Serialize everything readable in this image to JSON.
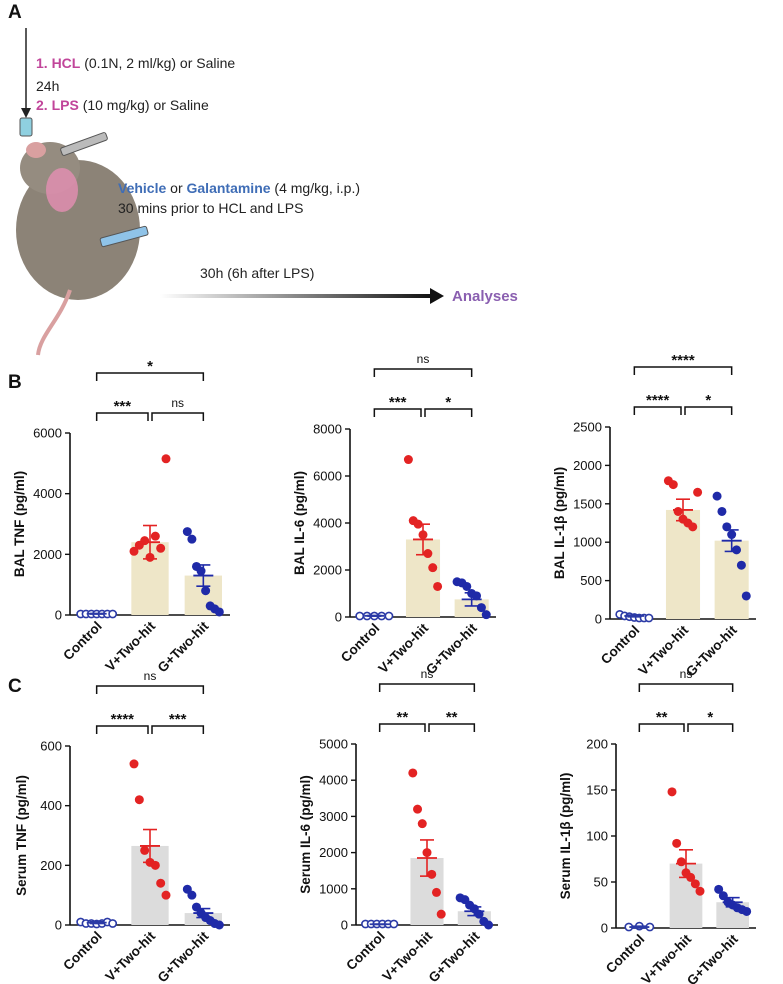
{
  "panel_labels": {
    "a": "A",
    "b": "B",
    "c": "C"
  },
  "schematic": {
    "step1_label": "1. HCL",
    "step1_detail": "(0.1N, 2 ml/kg) or Saline",
    "interval": "24h",
    "step2_label": "2. LPS",
    "step2_detail": "(10 mg/kg) or Saline",
    "vehicle": "Vehicle",
    "or_word": "or",
    "drug": "Galantamine",
    "drug_detail": "(4 mg/kg, i.p.)",
    "timing": "30 mins prior to HCL and LPS",
    "duration": "30h (6h after LPS)",
    "outcome": "Analyses"
  },
  "colors": {
    "control": "#2b3aa6",
    "vehicle": "#e32323",
    "galantamine": "#1f2aa8",
    "bar_yellow": "#eee6c8",
    "bar_gray": "#dcdcdc"
  },
  "chart_data": [
    {
      "type": "bar",
      "id": "bal-tnf",
      "ylabel": "BAL TNF (pg/ml)",
      "ylim": [
        0,
        6000
      ],
      "ticks": [
        0,
        2000,
        4000,
        6000
      ],
      "categories": [
        "Control",
        "V+Two-hit",
        "G+Two-hit"
      ],
      "means": [
        40,
        2400,
        1300
      ],
      "errors": [
        10,
        550,
        350
      ],
      "points": [
        [
          0,
          0,
          0,
          0,
          0,
          0,
          0
        ],
        [
          2100,
          2300,
          2450,
          1900,
          2600,
          2200,
          5150
        ],
        [
          2750,
          2500,
          1600,
          1450,
          800,
          300,
          200,
          100
        ]
      ],
      "sig": [
        {
          "pair": [
            0,
            1
          ],
          "label": "***",
          "level": 0
        },
        {
          "pair": [
            1,
            2
          ],
          "label": "ns",
          "level": 0
        },
        {
          "pair": [
            0,
            2
          ],
          "label": "*",
          "level": 1
        }
      ]
    },
    {
      "type": "bar",
      "id": "bal-il6",
      "ylabel": "BAL IL-6 (pg/ml)",
      "ylim": [
        0,
        8000
      ],
      "ticks": [
        0,
        2000,
        4000,
        6000,
        8000
      ],
      "categories": [
        "Control",
        "V+Two-hit",
        "G+Two-hit"
      ],
      "means": [
        50,
        3300,
        750
      ],
      "errors": [
        15,
        650,
        280
      ],
      "points": [
        [
          0,
          0,
          0,
          0,
          0
        ],
        [
          6700,
          4100,
          3950,
          3500,
          2700,
          2100,
          1300
        ],
        [
          1500,
          1450,
          1300,
          1000,
          900,
          400,
          100
        ]
      ],
      "sig": [
        {
          "pair": [
            0,
            1
          ],
          "label": "***",
          "level": 0
        },
        {
          "pair": [
            1,
            2
          ],
          "label": "*",
          "level": 0
        },
        {
          "pair": [
            0,
            2
          ],
          "label": "ns",
          "level": 1
        }
      ]
    },
    {
      "type": "bar",
      "id": "bal-il1b",
      "ylabel": "BAL IL-1β (pg/ml)",
      "ylim": [
        0,
        2500
      ],
      "ticks": [
        0,
        500,
        1000,
        1500,
        2000,
        2500
      ],
      "categories": [
        "Control",
        "V+Two-hit",
        "G+Two-hit"
      ],
      "means": [
        40,
        1420,
        1020
      ],
      "errors": [
        12,
        140,
        140
      ],
      "points": [
        [
          60,
          40,
          30,
          20,
          10,
          5,
          0
        ],
        [
          1800,
          1750,
          1400,
          1300,
          1250,
          1200,
          1650
        ],
        [
          1600,
          1400,
          1200,
          1100,
          900,
          700,
          300
        ]
      ],
      "sig": [
        {
          "pair": [
            0,
            1
          ],
          "label": "****",
          "level": 0
        },
        {
          "pair": [
            1,
            2
          ],
          "label": "*",
          "level": 0
        },
        {
          "pair": [
            0,
            2
          ],
          "label": "****",
          "level": 1
        }
      ]
    },
    {
      "type": "bar",
      "id": "serum-tnf",
      "ylabel": "Serum TNF (pg/ml)",
      "ylim": [
        0,
        600
      ],
      "ticks": [
        0,
        200,
        400,
        600
      ],
      "categories": [
        "Control",
        "V+Two-hit",
        "G+Two-hit"
      ],
      "means": [
        8,
        265,
        40
      ],
      "errors": [
        3,
        55,
        15
      ],
      "points": [
        [
          10,
          5,
          5,
          0,
          5,
          10,
          5
        ],
        [
          540,
          420,
          250,
          210,
          200,
          140,
          100
        ],
        [
          120,
          100,
          60,
          40,
          25,
          15,
          5,
          0
        ]
      ],
      "sig": [
        {
          "pair": [
            0,
            1
          ],
          "label": "****",
          "level": 0
        },
        {
          "pair": [
            1,
            2
          ],
          "label": "***",
          "level": 0
        },
        {
          "pair": [
            0,
            2
          ],
          "label": "ns",
          "level": 1
        }
      ]
    },
    {
      "type": "bar",
      "id": "serum-il6",
      "ylabel": "Serum IL-6 (pg/ml)",
      "ylim": [
        0,
        5000
      ],
      "ticks": [
        0,
        1000,
        2000,
        3000,
        4000,
        5000
      ],
      "categories": [
        "Control",
        "V+Two-hit",
        "G+Two-hit"
      ],
      "means": [
        20,
        1850,
        380
      ],
      "errors": [
        5,
        500,
        120
      ],
      "points": [
        [
          0,
          0,
          0,
          0,
          0,
          0
        ],
        [
          4200,
          3200,
          2800,
          2000,
          1400,
          900,
          300
        ],
        [
          750,
          700,
          550,
          450,
          300,
          100,
          0
        ]
      ],
      "sig": [
        {
          "pair": [
            0,
            1
          ],
          "label": "**",
          "level": 0
        },
        {
          "pair": [
            1,
            2
          ],
          "label": "**",
          "level": 0
        },
        {
          "pair": [
            0,
            2
          ],
          "label": "ns",
          "level": 1
        }
      ]
    },
    {
      "type": "bar",
      "id": "serum-il1b",
      "ylabel": "Serum IL-1β (pg/ml)",
      "ylim": [
        0,
        200
      ],
      "ticks": [
        0,
        50,
        100,
        150,
        200
      ],
      "categories": [
        "Control",
        "V+Two-hit",
        "G+Two-hit"
      ],
      "means": [
        1,
        70,
        28
      ],
      "errors": [
        1,
        15,
        5
      ],
      "points": [
        [
          1,
          2,
          1
        ],
        [
          148,
          92,
          72,
          60,
          55,
          48,
          40
        ],
        [
          42,
          35,
          28,
          25,
          22,
          20,
          18
        ]
      ],
      "sig": [
        {
          "pair": [
            0,
            1
          ],
          "label": "**",
          "level": 0
        },
        {
          "pair": [
            1,
            2
          ],
          "label": "*",
          "level": 0
        },
        {
          "pair": [
            0,
            2
          ],
          "label": "ns",
          "level": 1
        }
      ]
    }
  ]
}
